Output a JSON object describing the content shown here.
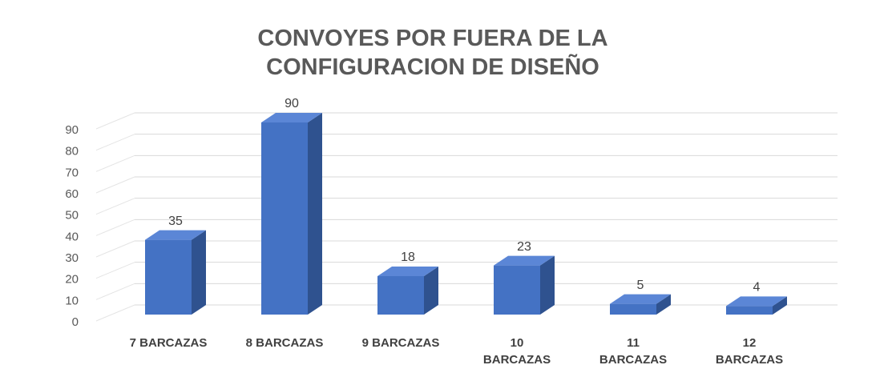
{
  "chart_data": {
    "type": "bar3d",
    "title": "CONVOYES POR FUERA DE LA CONFIGURACION DE DISEÑO",
    "categories": [
      "7 BARCAZAS",
      "8 BARCAZAS",
      "9 BARCAZAS",
      "10 BARCAZAS",
      "11 BARCAZAS",
      "12 BARCAZAS"
    ],
    "values": [
      35,
      90,
      18,
      23,
      5,
      4
    ],
    "color": "#4472c4",
    "ylim": [
      0,
      90
    ],
    "yticks": [
      0,
      10,
      20,
      30,
      40,
      50,
      60,
      70,
      80,
      90
    ],
    "grid": true
  }
}
